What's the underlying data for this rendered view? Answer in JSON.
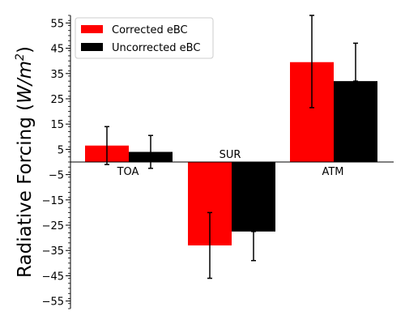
{
  "chart_data": {
    "type": "bar",
    "categories": [
      "TOA",
      "SUR",
      "ATM"
    ],
    "series": [
      {
        "name": "Corrected eBC",
        "color": "#ff0000",
        "values": [
          6.5,
          -33,
          39.5
        ],
        "error": [
          [
            -1,
            14
          ],
          [
            -46,
            -20
          ],
          [
            21.5,
            58
          ]
        ]
      },
      {
        "name": "Uncorrected eBC",
        "color": "#000000",
        "values": [
          4,
          -27.5,
          32
        ],
        "error": [
          [
            -2.5,
            10.5
          ],
          [
            -39,
            -27.5
          ],
          [
            32,
            47
          ]
        ]
      }
    ],
    "ylabel": "Radiative Forcing (W/m²)",
    "ylabel_parts": {
      "text": "Radiative Forcing (",
      "unit_base": "W/m",
      "unit_exp": "2",
      "close": ")"
    },
    "ylim": [
      -58,
      58
    ],
    "yticks": [
      -55,
      -45,
      -35,
      -25,
      -15,
      -5,
      5,
      15,
      25,
      35,
      45,
      55
    ],
    "ytick_labels": [
      "−55",
      "−45",
      "−35",
      "−25",
      "−15",
      "−5",
      "5",
      "15",
      "25",
      "35",
      "45",
      "55"
    ],
    "legend_position": "upper-left",
    "grid": false
  }
}
